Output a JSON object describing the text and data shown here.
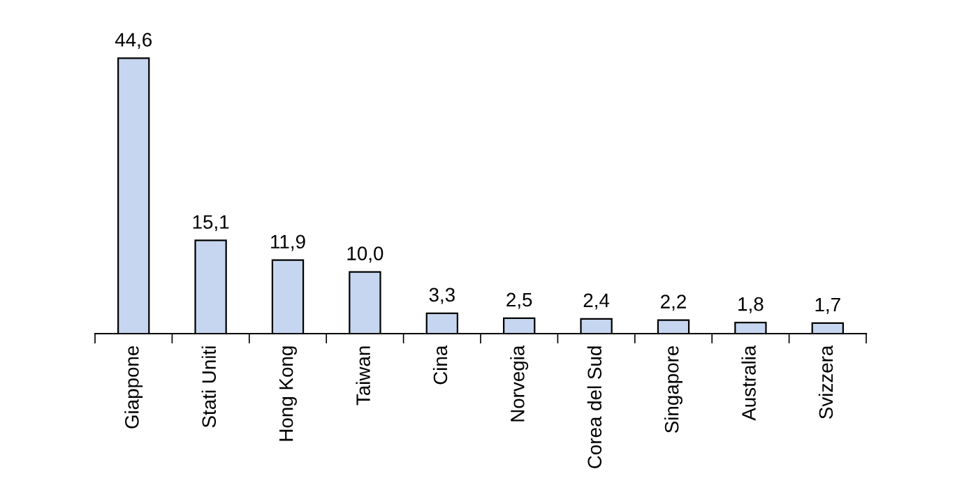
{
  "chart_data": {
    "type": "bar",
    "categories": [
      "Giappone",
      "Stati Uniti",
      "Hong Kong",
      "Taiwan",
      "Cina",
      "Norvegia",
      "Corea del Sud",
      "Singapore",
      "Australia",
      "Svizzera"
    ],
    "values": [
      44.6,
      15.1,
      11.9,
      10.0,
      3.3,
      2.5,
      2.4,
      2.2,
      1.8,
      1.7
    ],
    "value_labels": [
      "44,6",
      "15,1",
      "11,9",
      "10,0",
      "3,3",
      "2,5",
      "2,4",
      "2,2",
      "1,8",
      "1,7"
    ],
    "color": "#c6d6f0"
  }
}
